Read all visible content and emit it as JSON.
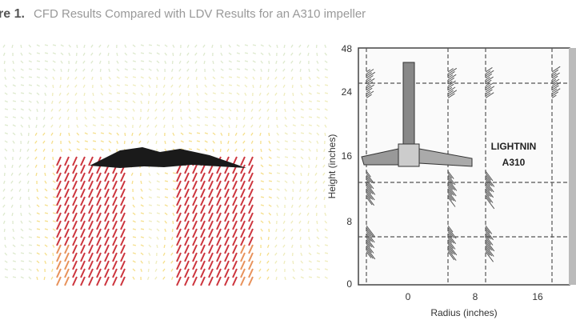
{
  "caption": {
    "label": "re 1.",
    "text": "CFD Results Compared with LDV Results for an A310 impeller"
  },
  "ldv_plot": {
    "y_axis_label": "Height (inches)",
    "x_axis_label": "Radius (inches)",
    "y_tick_labels": [
      "48",
      "24",
      "16",
      "8",
      "0"
    ],
    "x_tick_labels": [
      "0",
      "8",
      "16"
    ],
    "impeller_label": [
      "LIGHTNIN",
      "A310"
    ]
  }
}
